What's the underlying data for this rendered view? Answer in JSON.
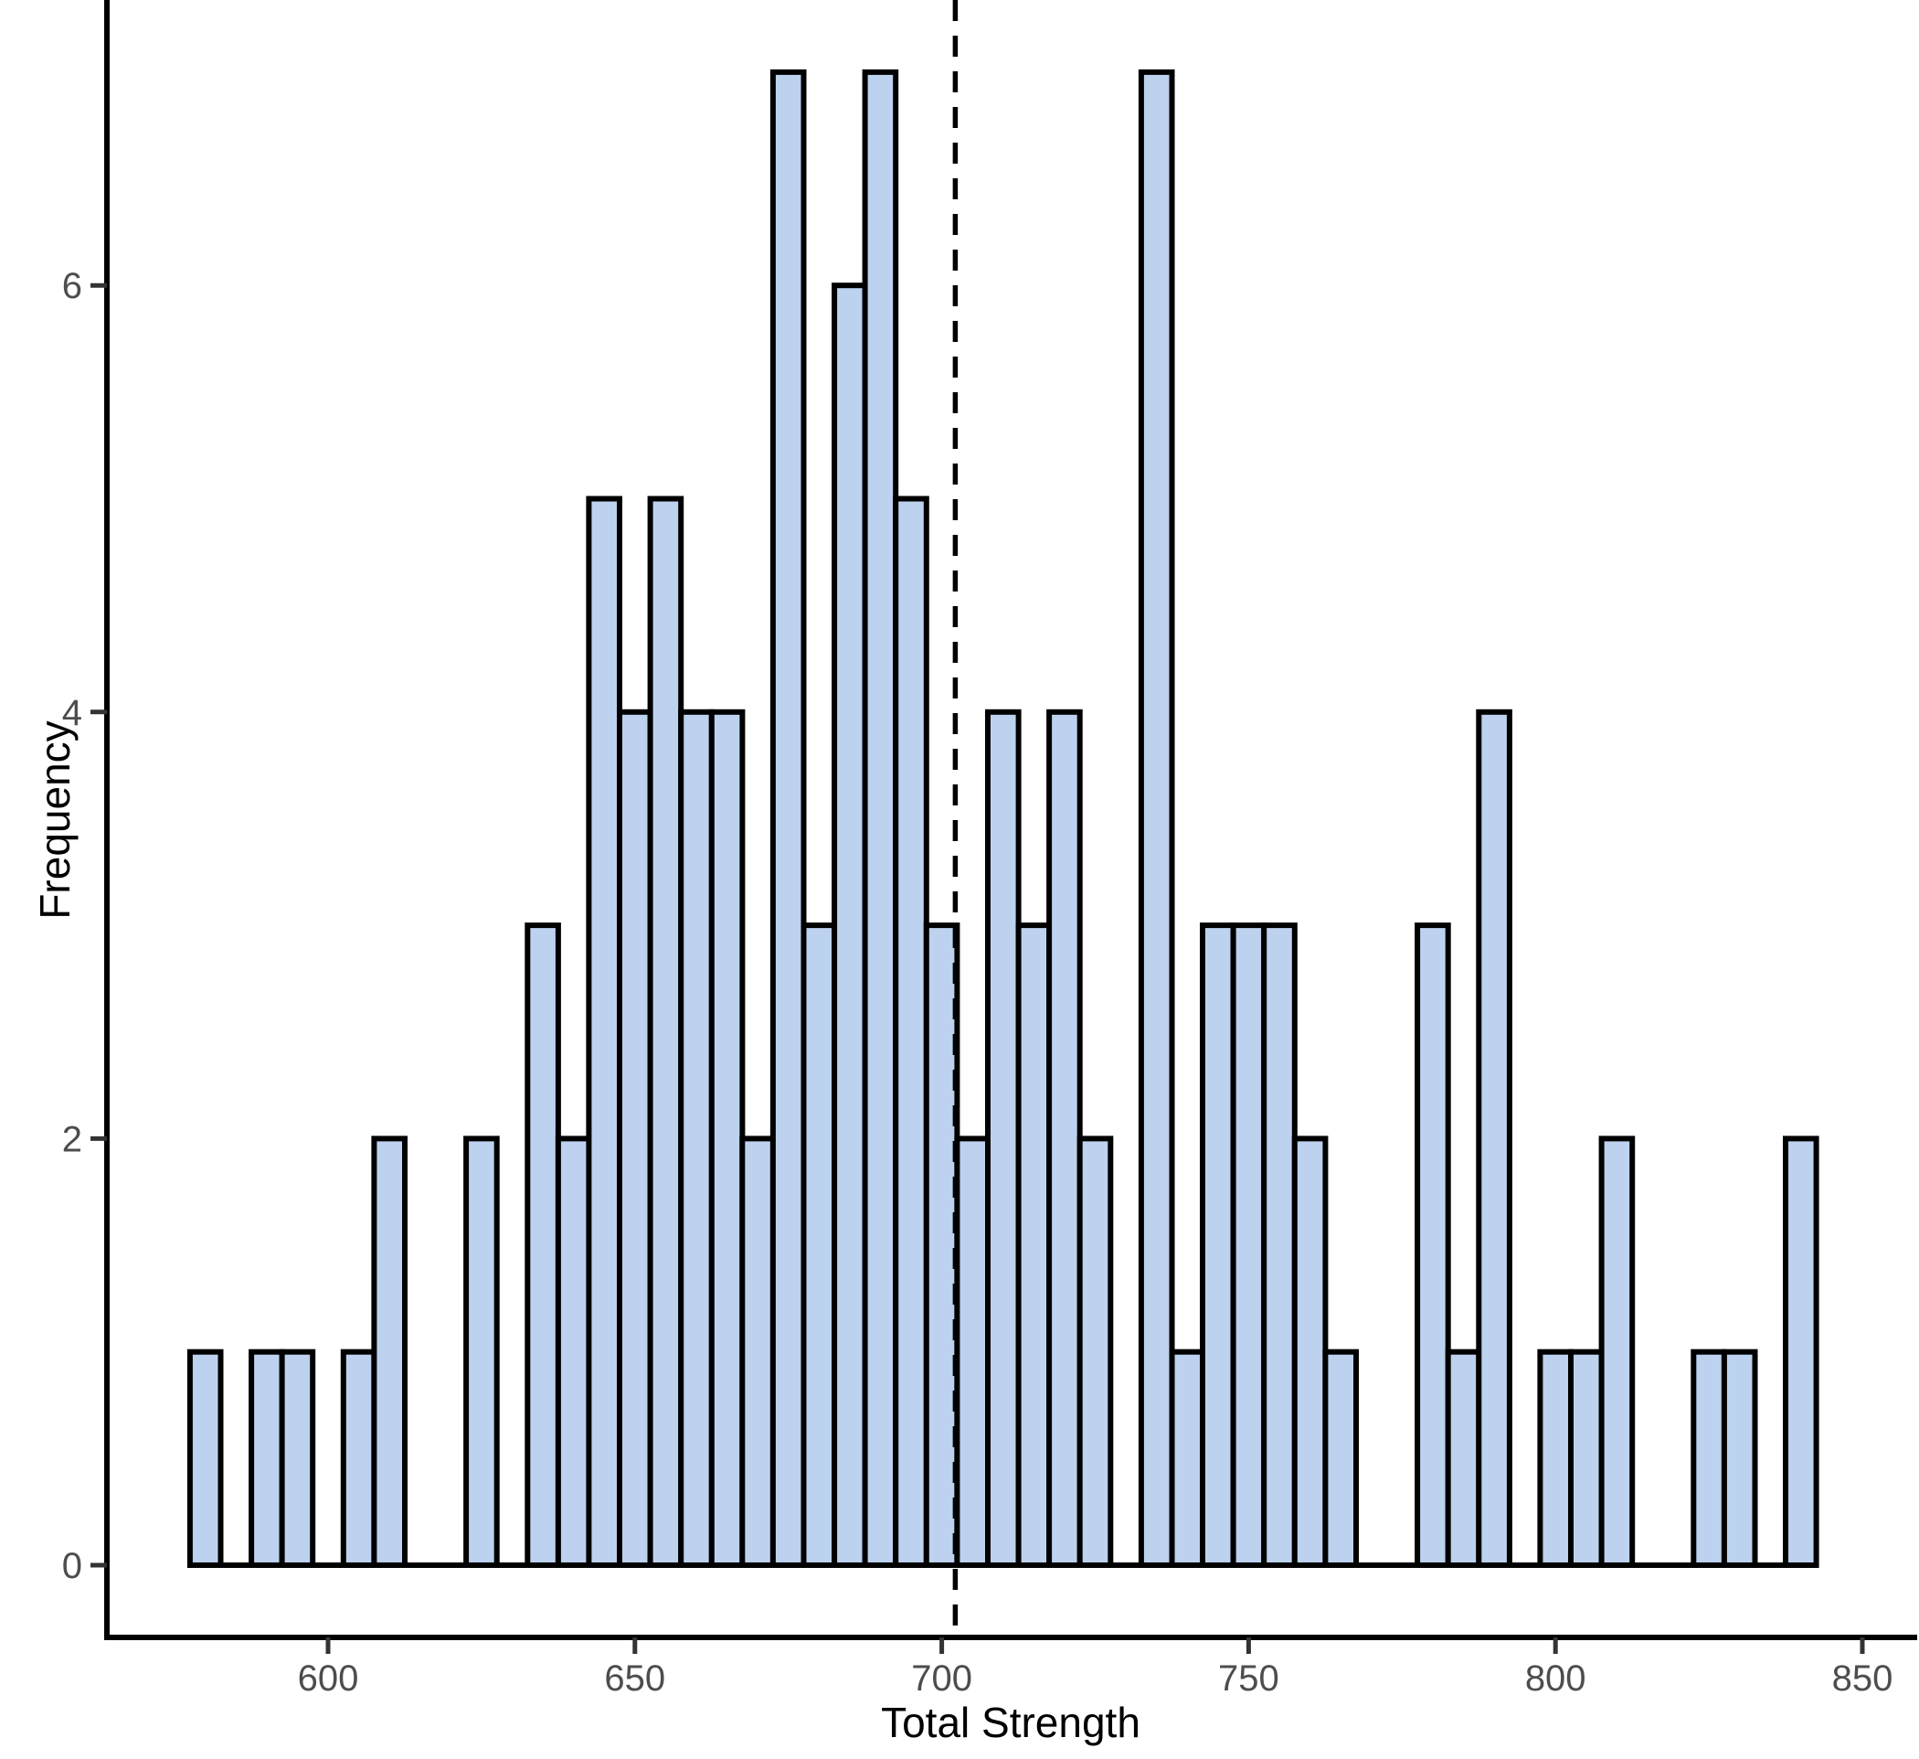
{
  "chart_data": {
    "type": "bar",
    "subtype": "histogram",
    "title": "",
    "xlabel": "Total Strength",
    "ylabel": "Frequency",
    "bin_width": 5,
    "bin_centers": [
      580,
      585,
      590,
      595,
      600,
      605,
      610,
      615,
      620,
      625,
      630,
      635,
      640,
      645,
      650,
      655,
      660,
      665,
      670,
      675,
      680,
      685,
      690,
      695,
      700,
      705,
      710,
      715,
      720,
      725,
      730,
      735,
      740,
      745,
      750,
      755,
      760,
      765,
      770,
      775,
      780,
      785,
      790,
      795,
      800,
      805,
      810,
      815,
      820,
      825,
      830,
      835,
      840
    ],
    "counts": [
      1,
      0,
      1,
      1,
      0,
      1,
      2,
      0,
      0,
      2,
      0,
      3,
      2,
      5,
      4,
      5,
      4,
      4,
      2,
      7,
      3,
      6,
      7,
      5,
      3,
      2,
      4,
      3,
      4,
      2,
      0,
      7,
      1,
      3,
      3,
      3,
      2,
      1,
      0,
      0,
      3,
      1,
      4,
      0,
      1,
      1,
      2,
      0,
      0,
      1,
      1,
      0,
      2
    ],
    "x_ticks": [
      600,
      650,
      700,
      750,
      800,
      850
    ],
    "y_ticks": [
      0,
      2,
      4,
      6
    ],
    "xlim": [
      564,
      858
    ],
    "ylim": [
      0,
      7.3
    ],
    "grid": "off",
    "legend": "none",
    "vline": {
      "x": 702.2,
      "style": "dashed",
      "color": "#000000"
    },
    "colors": {
      "bar_fill": "#BCD2EE",
      "bar_stroke": "#000000",
      "axis": "#000000",
      "tick": "#333333",
      "tick_label": "#4D4D4D",
      "axis_title": "#000000"
    },
    "background": "#FFFFFF"
  }
}
